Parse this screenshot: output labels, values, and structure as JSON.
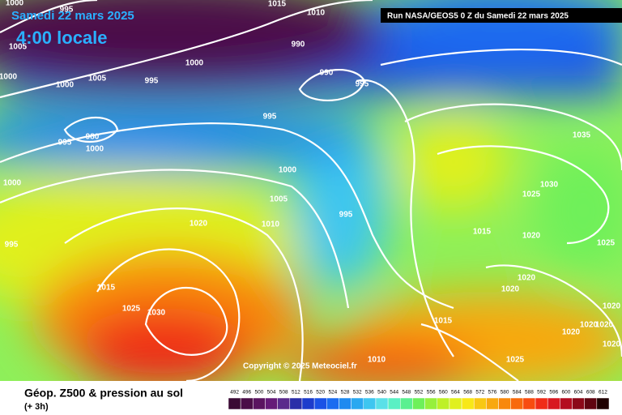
{
  "header": {
    "date": "Samedi 22 mars 2025",
    "time": "4:00 locale",
    "run": "Run NASA/GEOS5 0 Z du Samedi 22 mars 2025"
  },
  "copyright": "Copyright © 2025 Meteociel.fr",
  "footer": {
    "title": "Géop. Z500 & pression au sol",
    "lead": "(+ 3h)"
  },
  "isobar_labels": [
    "1000",
    "995",
    "1015",
    "1010",
    "1005",
    "990",
    "1000",
    "1000",
    "1000",
    "1005",
    "995",
    "990",
    "995",
    "995",
    "980",
    "995",
    "1000",
    "1035",
    "1000",
    "1030",
    "1000",
    "1025",
    "1005",
    "995",
    "1020",
    "1010",
    "1015",
    "1020",
    "1025",
    "995",
    "1020",
    "1015",
    "1020",
    "1025",
    "1030",
    "1020",
    "1015",
    "1020",
    "1020",
    "1020",
    "1010",
    "1025",
    "1020"
  ],
  "colorbar": {
    "ticks": [
      492,
      496,
      500,
      504,
      508,
      512,
      516,
      520,
      524,
      528,
      532,
      536,
      540,
      544,
      548,
      552,
      556,
      560,
      564,
      568,
      572,
      576,
      580,
      584,
      588,
      592,
      596,
      600,
      604,
      608,
      612
    ],
    "colors": [
      "#3a0a34",
      "#4b0e48",
      "#5a1460",
      "#651a78",
      "#5a2a8c",
      "#2a2ea8",
      "#1c3ccc",
      "#1a52e6",
      "#1a6cf0",
      "#1e8af0",
      "#2aa8f0",
      "#3ec6f0",
      "#5ae0e8",
      "#5af0c4",
      "#5af090",
      "#6ef05a",
      "#96f03c",
      "#bef028",
      "#e0f01e",
      "#f8e818",
      "#f8c814",
      "#f8a810",
      "#f8880c",
      "#f86a0c",
      "#f84c10",
      "#f02c18",
      "#d81820",
      "#b40c20",
      "#8c0818",
      "#600410",
      "#200000"
    ]
  }
}
